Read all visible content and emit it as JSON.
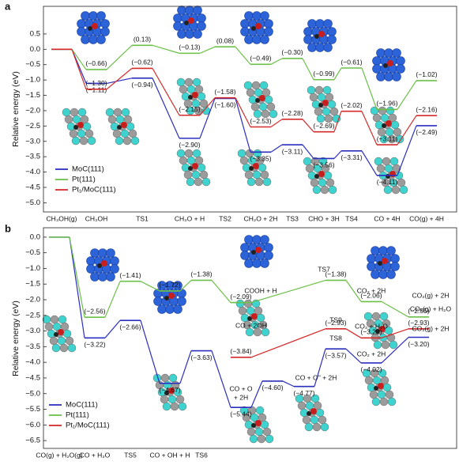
{
  "chart_data": [
    {
      "type": "energy-profile",
      "panel": "a",
      "ylabel": "Relative energy (eV)",
      "categories": [
        "CH₃OH(g)",
        "CH₃OH",
        "TS1",
        "CH₃O + H",
        "TS2",
        "CH₂O + 2H",
        "TS3",
        "CHO + 3H",
        "TS4",
        "CO + 4H",
        "CO(g) + 4H"
      ],
      "ylim": [
        -5.3,
        1.4
      ],
      "yticks": [
        0.5,
        {
          "value": 0,
          "label": "0.0"
        },
        {
          "value": -0.5,
          "label": "−0.5"
        },
        {
          "value": -1,
          "label": "−1.0"
        },
        {
          "value": -1.5,
          "label": "−1.5"
        },
        {
          "value": -2,
          "label": "−2.0"
        },
        {
          "value": -2.5,
          "label": "−2.5"
        },
        {
          "value": -3,
          "label": "−3.0"
        },
        {
          "value": -3.5,
          "label": "−3.5"
        },
        {
          "value": -4,
          "label": "−4.0"
        },
        {
          "value": -4.5,
          "label": "−4.5"
        },
        {
          "value": -5,
          "label": "−5.0"
        }
      ],
      "series": [
        {
          "name": "MoC(111)",
          "color": "#2b2fbf",
          "values": [
            0,
            -1.11,
            -0.94,
            -2.9,
            -1.6,
            -3.35,
            -3.11,
            -3.56,
            -3.31,
            -4.11,
            -2.49
          ],
          "value_labels": [
            null,
            "(−1.11)",
            "(−0.94)",
            "(−2.90)",
            "(−1.60)",
            "(−3.35)",
            "(−3.11)",
            "(−3.56)",
            "(−3.31)",
            "(−4.11)",
            "(−2.49)"
          ]
        },
        {
          "name": "Pt(111)",
          "color": "#6cc04a",
          "values": [
            0,
            -0.66,
            0.13,
            -0.13,
            0.08,
            -0.49,
            -0.3,
            -0.99,
            -0.61,
            -1.96,
            -1.02
          ],
          "value_labels": [
            null,
            "(−0.66)",
            "(0.13)",
            "(−0.13)",
            "(0.08)",
            "(−0.49)",
            "(−0.30)",
            "(−0.99)",
            "(−0.61)",
            "(−1.96)",
            "(−1.02)"
          ]
        },
        {
          "name": "Pt₁/MoC(111)",
          "color": "#d42a2a",
          "values": [
            0,
            -1.3,
            -0.62,
            -2.15,
            -1.58,
            -2.53,
            -2.28,
            -2.69,
            -2.02,
            -3.11,
            -2.16
          ],
          "value_labels": [
            null,
            "(−1.30)",
            "(−0.62)",
            "(−2.15)",
            "(−1.58)",
            "(−2.53)",
            "(−2.28)",
            "(−2.69)",
            "(−2.02)",
            "(−3.11)",
            "(−2.16)"
          ]
        }
      ]
    },
    {
      "type": "energy-profile",
      "panel": "b",
      "ylabel": "Relative energy (eV)",
      "categories": [
        "CO(g) + H₂O(g)",
        "CO + H₂O",
        "TS5",
        "CO + OH + H",
        "TS6"
      ],
      "ylim": [
        -6.75,
        0.3
      ],
      "yticks": [
        {
          "value": 0,
          "label": "0.0"
        },
        {
          "value": -0.5,
          "label": "−0.5"
        },
        {
          "value": -1,
          "label": "−1.0"
        },
        {
          "value": -1.5,
          "label": "−1.5"
        },
        {
          "value": -2,
          "label": "−2.0"
        },
        {
          "value": -2.5,
          "label": "−2.5"
        },
        {
          "value": -3,
          "label": "−3.0"
        },
        {
          "value": -3.5,
          "label": "−3.5"
        },
        {
          "value": -4,
          "label": "−4.0"
        },
        {
          "value": -4.5,
          "label": "−4.5"
        },
        {
          "value": -5,
          "label": "−5.0"
        },
        {
          "value": -5.5,
          "label": "−5.5"
        },
        {
          "value": -6,
          "label": "−6.0"
        },
        {
          "value": -6.5,
          "label": "−6.5"
        }
      ],
      "series": [
        {
          "name": "MoC(111)",
          "color": "#2b2fbf",
          "x": [
            0,
            1,
            2,
            3,
            4,
            5,
            6,
            7,
            8,
            9,
            10
          ],
          "values": [
            0,
            -3.22,
            -2.66,
            -4.67,
            -3.63,
            -5.44,
            -4.6,
            -4.77,
            -3.57,
            -4.02,
            -3.2
          ],
          "value_labels": [
            null,
            "(−3.22)",
            "(−2.66)",
            "(−4.67)",
            "(−3.63)",
            "(−5.44)",
            "(−4.60)",
            "(−4.77)",
            "(−3.57)",
            "(−4.02)",
            "(−3.20)"
          ]
        },
        {
          "name": "Pt(111)",
          "color": "#6cc04a",
          "x": [
            0,
            1,
            2,
            3,
            4,
            5,
            8,
            9,
            10
          ],
          "values": [
            0,
            -2.56,
            -1.41,
            -1.72,
            -1.38,
            -2.09,
            -1.38,
            -2.06,
            -2.55
          ],
          "value_labels": [
            null,
            "(−2.56)",
            "(−1.41)",
            "(−1.72)",
            "(−1.38)",
            "(−2.09)",
            "(−1.38)",
            "(−2.06)",
            "(−2.55)"
          ]
        },
        {
          "name": "Pt₁/MoC(111)",
          "color": "#d42a2a",
          "x": [
            5,
            8,
            9,
            10
          ],
          "values": [
            -3.84,
            -2.93,
            -3.22,
            -2.93
          ],
          "value_labels": [
            "(−3.84)",
            "(−2.93)",
            "(−3.22)",
            "(−2.93)"
          ]
        }
      ],
      "annotations": [
        {
          "text": "COOH + H",
          "series": 1
        },
        {
          "text": "TS7",
          "series": 1
        },
        {
          "text": "CO₂ + 2H",
          "series": 1
        },
        {
          "text": "CO₂(g) + 2H",
          "series": 1
        },
        {
          "text": "CO + 2OH",
          "series": 2
        },
        {
          "text": "TS9",
          "series": 2
        },
        {
          "text": "CO₂ + H₂O",
          "series": 2
        },
        {
          "text": "CO₂(g) + H₂O",
          "series": 2
        },
        {
          "text": "CO + O",
          "series": 0
        },
        {
          "text": "+ 2H",
          "series": 0
        },
        {
          "text": "CO + O'' + 2H",
          "series": 0
        },
        {
          "text": "TS8",
          "series": 0
        },
        {
          "text": "CO₂ + 2H",
          "series": 0
        },
        {
          "text": "CO₂(g) + 2H",
          "series": 0
        }
      ]
    }
  ]
}
